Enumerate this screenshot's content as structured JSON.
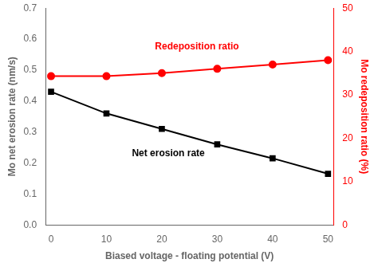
{
  "chart_data": {
    "type": "line",
    "xlabel": "Biased voltage - floating potential (V)",
    "ylabel": "Mo net erosion rate (nm/s)",
    "y2label": "Mo redeposition ratio (%)",
    "x": [
      0,
      10,
      20,
      30,
      40,
      50
    ],
    "series": [
      {
        "name": "Net erosion rate",
        "color": "black",
        "marker": "square",
        "values": [
          0.43,
          0.36,
          0.31,
          0.26,
          0.215,
          0.165
        ]
      },
      {
        "name": "Redeposition ratio",
        "color": "red",
        "marker": "circle",
        "axis": "y2",
        "values": [
          34.3,
          34.3,
          35.0,
          36.0,
          37.0,
          38.0
        ]
      }
    ],
    "annotations": [
      {
        "text": "Net erosion rate",
        "color": "black"
      },
      {
        "text": "Redeposition ratio",
        "color": "red"
      }
    ],
    "xlim": [
      -1,
      51
    ],
    "xticks": [
      0,
      10,
      20,
      30,
      40,
      50
    ],
    "ylim": [
      0.0,
      0.7
    ],
    "yticks": [
      {
        "value": 0.0,
        "label": "0.0"
      },
      0.1,
      0.2,
      0.3,
      0.4,
      0.5,
      0.6,
      0.7
    ],
    "y2lim": [
      0,
      50
    ],
    "y2ticks": [
      0,
      10,
      20,
      30,
      40,
      50
    ],
    "grid": false,
    "legend": false
  }
}
